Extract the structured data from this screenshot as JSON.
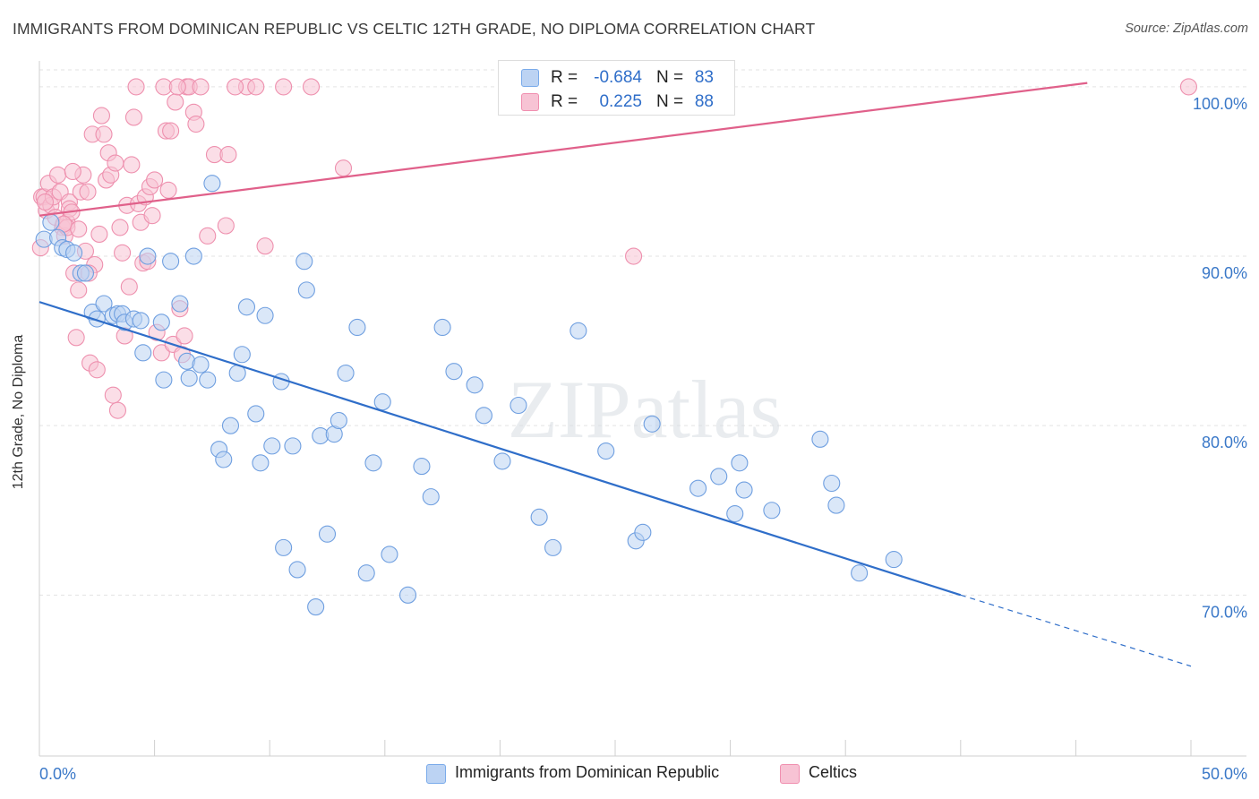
{
  "title": "IMMIGRANTS FROM DOMINICAN REPUBLIC VS CELTIC 12TH GRADE, NO DIPLOMA CORRELATION CHART",
  "source": "Source: ZipAtlas.com",
  "watermark": "ZIPatlas",
  "legend_box": {
    "rows": [
      {
        "r_label": "R =",
        "r_value": "-0.684",
        "n_label": "N =",
        "n_value": "83",
        "color": "#7aabea"
      },
      {
        "r_label": "R =",
        "r_value": "0.225",
        "n_label": "N =",
        "n_value": "88",
        "color": "#f08fb0"
      }
    ]
  },
  "bottom_legend": [
    {
      "label": "Immigrants from Dominican Republic",
      "color": "#7aabea"
    },
    {
      "label": "Celtics",
      "color": "#f08fb0"
    }
  ],
  "colors": {
    "blue": "#2f6ec9",
    "pink": "#e0608a",
    "blue_fill": "#bcd3f3",
    "pink_fill": "#f7c3d4",
    "axis_text": "#3a78c8"
  },
  "chart_data": {
    "type": "scatter",
    "title": "IMMIGRANTS FROM DOMINICAN REPUBLIC VS CELTIC 12TH GRADE, NO DIPLOMA CORRELATION CHART",
    "xlabel": "",
    "ylabel": "12th Grade, No Diploma",
    "xlim": [
      0,
      50
    ],
    "ylim": [
      60.5,
      101.0
    ],
    "x_tick_labels": [
      "0.0%",
      "50.0%"
    ],
    "y_ticks": [
      70,
      80,
      90,
      100
    ],
    "y_tick_labels": [
      "70.0%",
      "80.0%",
      "90.0%",
      "100.0%"
    ],
    "grid": "horizontal dashed",
    "legend_position": "top-center",
    "series": [
      {
        "name": "Immigrants from Dominican Republic",
        "color": "#2f6ec9",
        "trend": {
          "x": [
            0,
            40.0
          ],
          "y": [
            87.3,
            70.0
          ],
          "dashed_to": [
            50,
            65.8
          ]
        },
        "points": [
          [
            0.2,
            91.0
          ],
          [
            0.5,
            92.0
          ],
          [
            0.8,
            91.1
          ],
          [
            1.0,
            90.5
          ],
          [
            1.2,
            90.4
          ],
          [
            1.5,
            90.2
          ],
          [
            1.8,
            89.0
          ],
          [
            2.0,
            89.0
          ],
          [
            2.3,
            86.7
          ],
          [
            2.5,
            86.3
          ],
          [
            2.8,
            87.2
          ],
          [
            3.2,
            86.5
          ],
          [
            3.4,
            86.6
          ],
          [
            3.6,
            86.6
          ],
          [
            3.7,
            86.1
          ],
          [
            4.1,
            86.3
          ],
          [
            4.4,
            86.2
          ],
          [
            4.5,
            84.3
          ],
          [
            4.7,
            90.0
          ],
          [
            5.3,
            86.1
          ],
          [
            5.4,
            82.7
          ],
          [
            5.7,
            89.7
          ],
          [
            6.1,
            87.2
          ],
          [
            6.4,
            83.8
          ],
          [
            6.5,
            82.8
          ],
          [
            6.7,
            90.0
          ],
          [
            7.0,
            83.6
          ],
          [
            7.3,
            82.7
          ],
          [
            7.5,
            94.3
          ],
          [
            7.8,
            78.6
          ],
          [
            8.0,
            78.0
          ],
          [
            8.3,
            80.0
          ],
          [
            8.6,
            83.1
          ],
          [
            8.8,
            84.2
          ],
          [
            9.0,
            87.0
          ],
          [
            9.4,
            80.7
          ],
          [
            9.6,
            77.8
          ],
          [
            9.8,
            86.5
          ],
          [
            10.1,
            78.8
          ],
          [
            10.5,
            82.6
          ],
          [
            10.6,
            72.8
          ],
          [
            11.0,
            78.8
          ],
          [
            11.2,
            71.5
          ],
          [
            11.5,
            89.7
          ],
          [
            11.6,
            88.0
          ],
          [
            12.0,
            69.3
          ],
          [
            12.2,
            79.4
          ],
          [
            12.5,
            73.6
          ],
          [
            12.8,
            79.5
          ],
          [
            13.0,
            80.3
          ],
          [
            13.3,
            83.1
          ],
          [
            13.8,
            85.8
          ],
          [
            14.2,
            71.3
          ],
          [
            14.5,
            77.8
          ],
          [
            14.9,
            81.4
          ],
          [
            15.2,
            72.4
          ],
          [
            16.0,
            70.0
          ],
          [
            16.6,
            77.6
          ],
          [
            17.0,
            75.8
          ],
          [
            17.5,
            85.8
          ],
          [
            18.0,
            83.2
          ],
          [
            18.9,
            82.4
          ],
          [
            19.3,
            80.6
          ],
          [
            20.1,
            77.9
          ],
          [
            20.8,
            81.2
          ],
          [
            21.7,
            74.6
          ],
          [
            22.3,
            72.8
          ],
          [
            23.4,
            85.6
          ],
          [
            24.6,
            78.5
          ],
          [
            25.9,
            73.2
          ],
          [
            26.2,
            73.7
          ],
          [
            26.6,
            80.1
          ],
          [
            28.6,
            76.3
          ],
          [
            29.5,
            77.0
          ],
          [
            30.2,
            74.8
          ],
          [
            30.4,
            77.8
          ],
          [
            30.6,
            76.2
          ],
          [
            31.8,
            75.0
          ],
          [
            33.9,
            79.2
          ],
          [
            34.4,
            76.6
          ],
          [
            34.6,
            75.3
          ],
          [
            35.6,
            71.3
          ],
          [
            37.1,
            72.1
          ]
        ]
      },
      {
        "name": "Celtics",
        "color": "#e0608a",
        "trend": {
          "x": [
            0,
            50
          ],
          "y": [
            92.4,
            101.0
          ]
        },
        "points": [
          [
            0.1,
            93.5
          ],
          [
            0.2,
            93.5
          ],
          [
            0.3,
            92.7
          ],
          [
            0.4,
            94.3
          ],
          [
            0.5,
            93.0
          ],
          [
            0.6,
            93.5
          ],
          [
            0.7,
            92.3
          ],
          [
            0.8,
            94.8
          ],
          [
            0.9,
            93.8
          ],
          [
            1.0,
            91.7
          ],
          [
            1.1,
            91.2
          ],
          [
            1.2,
            92.0
          ],
          [
            1.2,
            91.7
          ],
          [
            1.3,
            93.2
          ],
          [
            1.3,
            92.8
          ],
          [
            1.4,
            92.6
          ],
          [
            1.5,
            89.0
          ],
          [
            1.6,
            85.2
          ],
          [
            1.7,
            88.0
          ],
          [
            1.7,
            91.6
          ],
          [
            1.8,
            93.8
          ],
          [
            1.9,
            94.8
          ],
          [
            2.0,
            90.3
          ],
          [
            2.1,
            93.8
          ],
          [
            2.2,
            83.7
          ],
          [
            2.3,
            97.2
          ],
          [
            2.4,
            89.5
          ],
          [
            2.5,
            83.3
          ],
          [
            2.6,
            91.3
          ],
          [
            2.7,
            98.3
          ],
          [
            2.8,
            97.2
          ],
          [
            2.9,
            94.5
          ],
          [
            3.0,
            96.1
          ],
          [
            3.1,
            94.8
          ],
          [
            3.2,
            81.8
          ],
          [
            3.3,
            95.5
          ],
          [
            3.4,
            80.9
          ],
          [
            3.5,
            91.7
          ],
          [
            3.6,
            90.2
          ],
          [
            3.7,
            85.3
          ],
          [
            3.8,
            93.0
          ],
          [
            3.9,
            88.2
          ],
          [
            4.0,
            95.4
          ],
          [
            4.1,
            98.2
          ],
          [
            4.2,
            100.0
          ],
          [
            4.3,
            93.1
          ],
          [
            4.4,
            92.0
          ],
          [
            4.5,
            89.6
          ],
          [
            4.6,
            93.5
          ],
          [
            4.7,
            89.7
          ],
          [
            4.8,
            94.1
          ],
          [
            4.9,
            92.4
          ],
          [
            5.1,
            85.5
          ],
          [
            5.3,
            84.3
          ],
          [
            5.4,
            100.0
          ],
          [
            5.5,
            97.4
          ],
          [
            5.6,
            93.9
          ],
          [
            5.7,
            97.4
          ],
          [
            5.8,
            84.8
          ],
          [
            5.9,
            99.1
          ],
          [
            6.1,
            86.9
          ],
          [
            6.2,
            84.2
          ],
          [
            6.3,
            85.3
          ],
          [
            6.4,
            100.0
          ],
          [
            6.5,
            100.0
          ],
          [
            6.7,
            98.5
          ],
          [
            6.8,
            97.8
          ],
          [
            7.0,
            100.0
          ],
          [
            7.3,
            91.2
          ],
          [
            7.6,
            96.0
          ],
          [
            8.1,
            91.8
          ],
          [
            8.2,
            96.0
          ],
          [
            9.0,
            100.0
          ],
          [
            9.4,
            100.0
          ],
          [
            9.8,
            90.6
          ],
          [
            10.6,
            100.0
          ],
          [
            11.8,
            100.0
          ],
          [
            13.2,
            95.2
          ],
          [
            25.8,
            90.0
          ],
          [
            49.9,
            100.0
          ],
          [
            0.05,
            90.5
          ],
          [
            1.45,
            95.0
          ],
          [
            2.15,
            89.0
          ],
          [
            5.0,
            94.5
          ],
          [
            8.5,
            100.0
          ],
          [
            6.0,
            100.0
          ],
          [
            1.05,
            91.9
          ],
          [
            0.25,
            93.2
          ]
        ]
      }
    ]
  }
}
